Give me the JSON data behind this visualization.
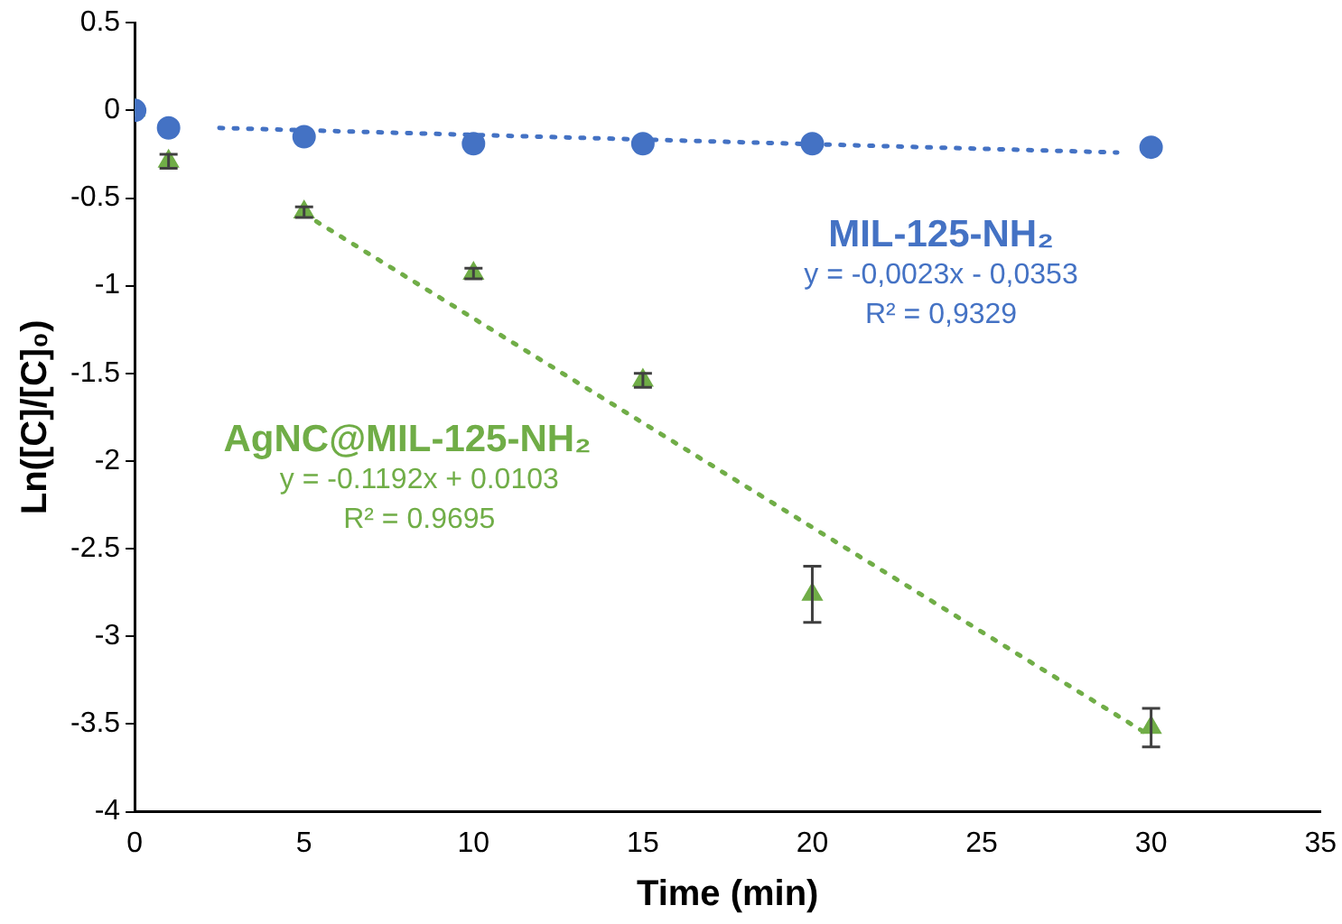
{
  "chart_data": {
    "type": "scatter",
    "xlabel": "Time (min)",
    "ylabel": "Ln([C]/[C]₀)",
    "xlim": [
      0,
      35
    ],
    "xticks": [
      0,
      5,
      10,
      15,
      20,
      25,
      30,
      35
    ],
    "ylim": [
      -4,
      0.5
    ],
    "yticks": [
      0.5,
      0,
      -0.5,
      -1,
      -1.5,
      -2,
      -2.5,
      -3,
      -3.5,
      -4
    ],
    "grid": false,
    "legend": false,
    "series": [
      {
        "name": "MIL-125-NH₂",
        "color": "#4472c4",
        "marker": "circle",
        "x": [
          0,
          1,
          5,
          10,
          15,
          20,
          30
        ],
        "values": [
          0,
          -0.1,
          -0.15,
          -0.19,
          -0.19,
          -0.19,
          -0.21
        ]
      },
      {
        "name": "AgNC@MIL-125-NH₂",
        "color": "#70ad47",
        "marker": "triangle",
        "x": [
          0,
          1,
          5,
          10,
          15,
          20,
          30
        ],
        "values": [
          0,
          -0.29,
          -0.58,
          -0.93,
          -1.54,
          -2.76,
          -3.52
        ],
        "errors": [
          null,
          0.04,
          0.03,
          0.03,
          0.04,
          0.16,
          0.11
        ]
      },
      {
        "color": "#4472c4",
        "type": "line",
        "marker": "none",
        "line_style": "dotted",
        "x": [
          2.5,
          29
        ],
        "values": [
          -0.1,
          -0.24
        ]
      },
      {
        "color": "#70ad47",
        "type": "line",
        "marker": "none",
        "line_style": "dotted",
        "x": [
          5,
          30
        ],
        "values": [
          -0.59,
          -3.57
        ]
      }
    ],
    "annotations": [
      "y = -0,0023x - 0,0353",
      "R² = 0,9329",
      "y = -0.1192x + 0.0103",
      "R² = 0.9695"
    ]
  }
}
